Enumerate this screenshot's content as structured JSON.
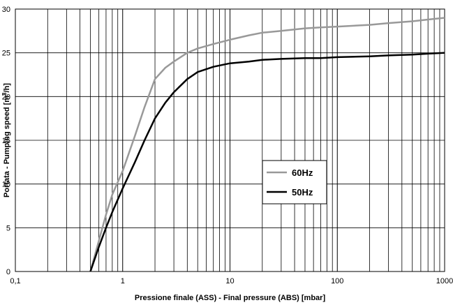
{
  "chart_data": {
    "type": "line",
    "xscale": "log",
    "xlim": [
      0.1,
      1000
    ],
    "ylim": [
      0,
      30
    ],
    "xticks": [
      "0,1",
      "1",
      "10",
      "100",
      "1000"
    ],
    "yticks": [
      "0",
      "5",
      "10",
      "15",
      "20",
      "25",
      "30"
    ],
    "xlabel": "Pressione finale (ASS) - Final pressure (ABS) [mbar]",
    "ylabel_main": "Portata - Pumping speed [m",
    "ylabel_sup": "3",
    "ylabel_end": "/h]",
    "grid": true,
    "legend_position": "center-right",
    "series": [
      {
        "name": "60Hz",
        "color": "#999999",
        "x": [
          0.5,
          0.6,
          0.7,
          0.8,
          1.0,
          1.3,
          1.6,
          2.0,
          2.5,
          3.0,
          4.0,
          5.0,
          7.0,
          10,
          15,
          20,
          30,
          50,
          70,
          100,
          200,
          300,
          500,
          700,
          1000
        ],
        "y": [
          0,
          3.5,
          6.5,
          8.8,
          11.5,
          15.5,
          18.8,
          22.0,
          23.3,
          24.0,
          25.0,
          25.5,
          26.0,
          26.5,
          27.0,
          27.3,
          27.5,
          27.8,
          27.9,
          28.0,
          28.2,
          28.4,
          28.6,
          28.8,
          29.0
        ]
      },
      {
        "name": "50Hz",
        "color": "#000000",
        "x": [
          0.5,
          0.6,
          0.7,
          0.8,
          1.0,
          1.3,
          1.6,
          2.0,
          2.5,
          3.0,
          4.0,
          5.0,
          7.0,
          10,
          15,
          20,
          30,
          50,
          70,
          100,
          200,
          300,
          500,
          700,
          1000
        ],
        "y": [
          0,
          2.8,
          5.0,
          6.8,
          9.5,
          12.5,
          15.0,
          17.5,
          19.3,
          20.5,
          22.0,
          22.8,
          23.4,
          23.8,
          24.0,
          24.2,
          24.3,
          24.4,
          24.4,
          24.5,
          24.6,
          24.7,
          24.8,
          24.9,
          25.0
        ]
      }
    ]
  }
}
